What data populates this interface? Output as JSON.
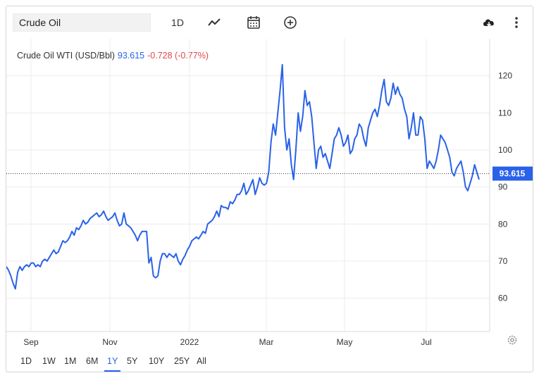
{
  "toolbar": {
    "search_value": "Crude Oil",
    "interval_label": "1D"
  },
  "legend": {
    "name": "Crude Oil WTI (USD/Bbl)",
    "price": "93.615",
    "change": "-0.728 (-0.77%)"
  },
  "price_tag": "93.615",
  "colors": {
    "line": "#2962e8",
    "negative": "#e04848",
    "grid": "#ececec"
  },
  "ranges": [
    "1D",
    "1W",
    "1M",
    "6M",
    "1Y",
    "5Y",
    "10Y",
    "25Y",
    "All"
  ],
  "active_range": "1Y",
  "chart_data": {
    "type": "line",
    "x_ticks": [
      "Sep",
      "Nov",
      "2022",
      "Mar",
      "May",
      "Jul"
    ],
    "y_ticks": [
      60,
      70,
      80,
      90,
      100,
      110,
      120
    ],
    "ylim": [
      51,
      130
    ],
    "last_price": 93.615,
    "grid": true,
    "series": [
      {
        "values": [
          68.5,
          67.5,
          66,
          64,
          62.5,
          67,
          68.5,
          67.5,
          68.5,
          69,
          68.5,
          69.5,
          69.5,
          68.5,
          69,
          68.5,
          70,
          70.5,
          70,
          71,
          72,
          73,
          72,
          72.5,
          74,
          75.5,
          75,
          75.5,
          76.5,
          78,
          77,
          79,
          78.5,
          79.5,
          81,
          80,
          80.5,
          81.5,
          82,
          82.5,
          83,
          82,
          82.5,
          83.5,
          82,
          81,
          81.5,
          82,
          83,
          81,
          79.5,
          80,
          83,
          80,
          79.5,
          79,
          78,
          77,
          75.5,
          77,
          78,
          78,
          78,
          69.5,
          71,
          66,
          65.5,
          66,
          70,
          72,
          72,
          71,
          72,
          71.5,
          71,
          72,
          70,
          69,
          70.5,
          71.5,
          73,
          74,
          75.5,
          76,
          76.5,
          76,
          77,
          78,
          77.5,
          80,
          80.5,
          81,
          82,
          83.5,
          82,
          85,
          84.5,
          84.5,
          84,
          86,
          85.5,
          86.5,
          88,
          88,
          89,
          91,
          88,
          89,
          90.5,
          92,
          88,
          90,
          92.5,
          91,
          90.5,
          91,
          94,
          102,
          107,
          104,
          110,
          116,
          123,
          106,
          100,
          103,
          96,
          92,
          100,
          110,
          105,
          109,
          116,
          112,
          113,
          109,
          102,
          95,
          100,
          101,
          98,
          99,
          97,
          95,
          99,
          103,
          104,
          106,
          104,
          101,
          102,
          104,
          99,
          100,
          103,
          104,
          107,
          106,
          103,
          101,
          106,
          108,
          110,
          111,
          109,
          112,
          116,
          119,
          113,
          112,
          114,
          118,
          115,
          117,
          115,
          114,
          111,
          109,
          103,
          106,
          110,
          104,
          104,
          109,
          108,
          103,
          95,
          97,
          96,
          95,
          97,
          100,
          104,
          103,
          102,
          100,
          98,
          94,
          93,
          95,
          96,
          97,
          94,
          90,
          89,
          91,
          93,
          96,
          94,
          92
        ],
        "color": "#2962e8"
      }
    ]
  }
}
